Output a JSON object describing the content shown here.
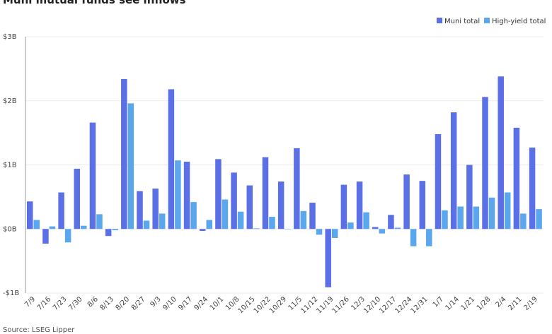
{
  "title": "Muni mutual funds see inflows",
  "source": "Source: LSEG Lipper",
  "colors": {
    "muni": "#5b6fe6",
    "high_yield": "#5ba7ee",
    "grid": "#ececec",
    "axis": "#999999"
  },
  "chart_data": {
    "type": "bar",
    "title": "Muni mutual funds see inflows",
    "xlabel": "",
    "ylabel": "",
    "ylim": [
      -1,
      3
    ],
    "yticks": [
      -1,
      0,
      1,
      2,
      3
    ],
    "ytick_labels": [
      "-$1B",
      "$0B",
      "$1B",
      "$2B",
      "$3B"
    ],
    "legend_position": "top-right",
    "grid": "horizontal",
    "categories": [
      "7/9",
      "7/16",
      "7/23",
      "7/30",
      "8/6",
      "8/13",
      "8/20",
      "8/27",
      "9/3",
      "9/10",
      "9/17",
      "9/24",
      "10/1",
      "10/8",
      "10/15",
      "10/22",
      "10/29",
      "11/5",
      "11/12",
      "11/19",
      "11/26",
      "12/3",
      "12/10",
      "12/17",
      "12/24",
      "12/31",
      "1/7",
      "1/14",
      "1/21",
      "1/28",
      "2/4",
      "2/11",
      "2/19"
    ],
    "series": [
      {
        "name": "Muni total",
        "values": [
          0.43,
          -0.23,
          0.57,
          0.94,
          1.66,
          -0.11,
          2.34,
          0.59,
          0.63,
          2.18,
          1.05,
          -0.03,
          1.09,
          0.88,
          0.68,
          1.12,
          0.74,
          1.26,
          0.41,
          -0.91,
          0.69,
          0.74,
          0.03,
          0.22,
          0.85,
          0.75,
          1.48,
          1.82,
          1.0,
          2.06,
          2.38,
          1.58,
          1.27
        ]
      },
      {
        "name": "High-yield total",
        "values": [
          0.14,
          0.04,
          -0.21,
          0.05,
          0.23,
          -0.02,
          1.96,
          0.13,
          0.24,
          1.07,
          0.42,
          0.14,
          0.46,
          0.27,
          0.01,
          0.19,
          0.0,
          0.28,
          -0.09,
          -0.14,
          0.1,
          0.26,
          -0.07,
          0.02,
          -0.27,
          -0.27,
          0.29,
          0.35,
          0.35,
          0.49,
          0.57,
          0.24,
          0.31
        ]
      }
    ]
  }
}
